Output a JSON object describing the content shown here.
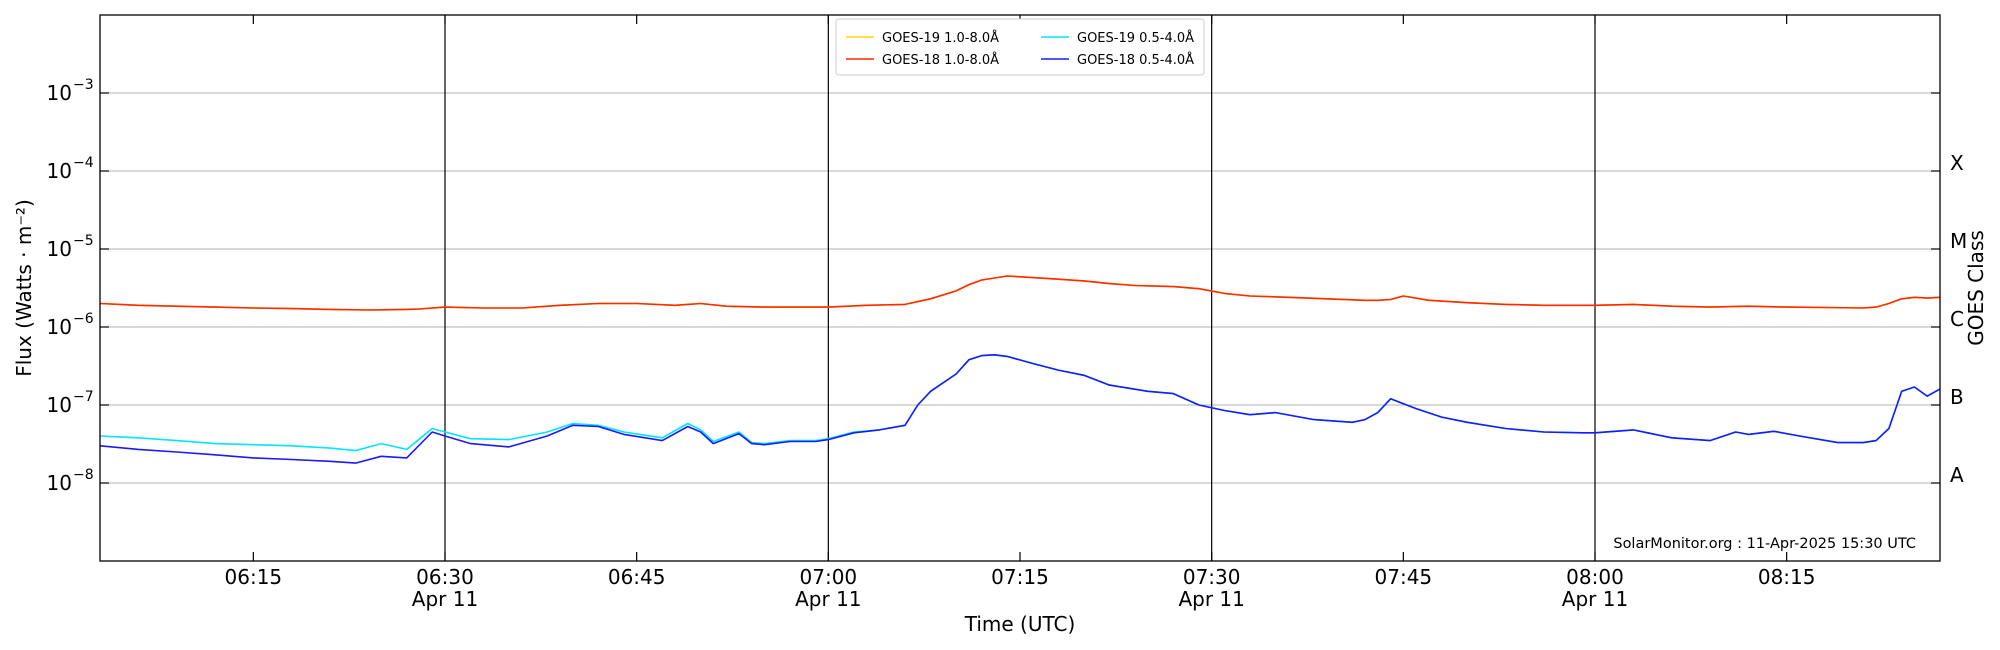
{
  "chart_data": {
    "type": "line",
    "xlabel": "Time (UTC)",
    "ylabel": "Flux (Watts · m⁻²)",
    "y2label": "GOES Class",
    "yscale": "log",
    "xlim": [
      "06:03",
      "08:27"
    ],
    "ylim": [
      1e-09,
      0.01
    ],
    "grid": "horizontal at each decade",
    "legend_location": "top-center",
    "credit": "SolarMonitor.org : 11-Apr-2025 15:30 UTC",
    "x_ticks": [
      {
        "time": "06:15",
        "label": "06:15",
        "date": ""
      },
      {
        "time": "06:30",
        "label": "06:30",
        "date": "Apr 11"
      },
      {
        "time": "06:45",
        "label": "06:45",
        "date": ""
      },
      {
        "time": "07:00",
        "label": "07:00",
        "date": "Apr 11"
      },
      {
        "time": "07:15",
        "label": "07:15",
        "date": ""
      },
      {
        "time": "07:30",
        "label": "07:30",
        "date": "Apr 11"
      },
      {
        "time": "07:45",
        "label": "07:45",
        "date": ""
      },
      {
        "time": "08:00",
        "label": "08:00",
        "date": "Apr 11"
      },
      {
        "time": "08:15",
        "label": "08:15",
        "date": ""
      }
    ],
    "vlines": [
      "06:30",
      "07:00",
      "07:30",
      "08:00"
    ],
    "y_ticks": [
      {
        "value": 1e-08,
        "base": "10",
        "exp": "−8"
      },
      {
        "value": 1e-07,
        "base": "10",
        "exp": "−7"
      },
      {
        "value": 1e-06,
        "base": "10",
        "exp": "−6"
      },
      {
        "value": 1e-05,
        "base": "10",
        "exp": "−5"
      },
      {
        "value": 0.0001,
        "base": "10",
        "exp": "−4"
      },
      {
        "value": 0.001,
        "base": "10",
        "exp": "−3"
      }
    ],
    "goes_classes": [
      {
        "label": "A",
        "value": 1e-08
      },
      {
        "label": "B",
        "value": 1e-07
      },
      {
        "label": "C",
        "value": 1e-06
      },
      {
        "label": "M",
        "value": 1e-05
      },
      {
        "label": "X",
        "value": 0.0001
      }
    ],
    "series": [
      {
        "name": "GOES-19 1.0-8.0Å",
        "color": "#ffd700",
        "x": [
          "06:03",
          "06:06",
          "06:09",
          "06:12",
          "06:15",
          "06:18",
          "06:21",
          "06:24",
          "06:27",
          "06:28",
          "06:30",
          "06:33",
          "06:36",
          "06:39",
          "06:42",
          "06:45",
          "06:48",
          "06:50",
          "06:52",
          "06:55",
          "06:58",
          "07:00",
          "07:03",
          "07:06",
          "07:08",
          "07:10",
          "07:11",
          "07:12",
          "07:14",
          "07:16",
          "07:18",
          "07:20",
          "07:22",
          "07:24",
          "07:27",
          "07:29",
          "07:31",
          "07:33",
          "07:36",
          "07:39",
          "07:42",
          "07:43",
          "07:44",
          "07:45",
          "07:47",
          "07:50",
          "07:53",
          "07:56",
          "07:59",
          "08:00",
          "08:03",
          "08:06",
          "08:09",
          "08:12",
          "08:15",
          "08:18",
          "08:21",
          "08:22",
          "08:23",
          "08:24",
          "08:25",
          "08:26",
          "08:27"
        ],
        "y": [
          2e-06,
          1.9e-06,
          1.85e-06,
          1.8e-06,
          1.75e-06,
          1.72e-06,
          1.68e-06,
          1.65e-06,
          1.68e-06,
          1.7e-06,
          1.8e-06,
          1.75e-06,
          1.75e-06,
          1.9e-06,
          2e-06,
          2e-06,
          1.9e-06,
          2e-06,
          1.85e-06,
          1.8e-06,
          1.8e-06,
          1.8e-06,
          1.9e-06,
          1.95e-06,
          2.3e-06,
          2.9e-06,
          3.5e-06,
          4e-06,
          4.5e-06,
          4.3e-06,
          4.1e-06,
          3.9e-06,
          3.6e-06,
          3.4e-06,
          3.3e-06,
          3.1e-06,
          2.7e-06,
          2.5e-06,
          2.4e-06,
          2.3e-06,
          2.2e-06,
          2.2e-06,
          2.25e-06,
          2.5e-06,
          2.2e-06,
          2.05e-06,
          1.95e-06,
          1.9e-06,
          1.9e-06,
          1.9e-06,
          1.95e-06,
          1.85e-06,
          1.8e-06,
          1.85e-06,
          1.8e-06,
          1.78e-06,
          1.75e-06,
          1.8e-06,
          2e-06,
          2.3e-06,
          2.4e-06,
          2.35e-06,
          2.4e-06
        ]
      },
      {
        "name": "GOES-18 1.0-8.0Å",
        "color": "#ff2a00",
        "x": [
          "06:03",
          "06:06",
          "06:09",
          "06:12",
          "06:15",
          "06:18",
          "06:21",
          "06:24",
          "06:27",
          "06:28",
          "06:30",
          "06:33",
          "06:36",
          "06:39",
          "06:42",
          "06:45",
          "06:48",
          "06:50",
          "06:52",
          "06:55",
          "06:58",
          "07:00",
          "07:03",
          "07:06",
          "07:08",
          "07:10",
          "07:11",
          "07:12",
          "07:14",
          "07:16",
          "07:18",
          "07:20",
          "07:22",
          "07:24",
          "07:27",
          "07:29",
          "07:31",
          "07:33",
          "07:36",
          "07:39",
          "07:42",
          "07:43",
          "07:44",
          "07:45",
          "07:47",
          "07:50",
          "07:53",
          "07:56",
          "07:59",
          "08:00",
          "08:03",
          "08:06",
          "08:09",
          "08:12",
          "08:15",
          "08:18",
          "08:21",
          "08:22",
          "08:23",
          "08:24",
          "08:25",
          "08:26",
          "08:27"
        ],
        "y": [
          2e-06,
          1.9e-06,
          1.85e-06,
          1.8e-06,
          1.75e-06,
          1.72e-06,
          1.68e-06,
          1.65e-06,
          1.68e-06,
          1.7e-06,
          1.8e-06,
          1.75e-06,
          1.75e-06,
          1.9e-06,
          2e-06,
          2e-06,
          1.9e-06,
          2e-06,
          1.85e-06,
          1.8e-06,
          1.8e-06,
          1.8e-06,
          1.9e-06,
          1.95e-06,
          2.3e-06,
          2.9e-06,
          3.5e-06,
          4e-06,
          4.5e-06,
          4.3e-06,
          4.1e-06,
          3.9e-06,
          3.6e-06,
          3.4e-06,
          3.3e-06,
          3.1e-06,
          2.7e-06,
          2.5e-06,
          2.4e-06,
          2.3e-06,
          2.2e-06,
          2.2e-06,
          2.25e-06,
          2.5e-06,
          2.2e-06,
          2.05e-06,
          1.95e-06,
          1.9e-06,
          1.9e-06,
          1.9e-06,
          1.95e-06,
          1.85e-06,
          1.8e-06,
          1.85e-06,
          1.8e-06,
          1.78e-06,
          1.75e-06,
          1.8e-06,
          2e-06,
          2.3e-06,
          2.4e-06,
          2.35e-06,
          2.4e-06
        ]
      },
      {
        "name": "GOES-19 0.5-4.0Å",
        "color": "#00e5ff",
        "x": [
          "06:03",
          "06:06",
          "06:09",
          "06:12",
          "06:15",
          "06:18",
          "06:21",
          "06:23",
          "06:25",
          "06:27",
          "06:29",
          "06:30",
          "06:32",
          "06:35",
          "06:38",
          "06:40",
          "06:42",
          "06:44",
          "06:47",
          "06:49",
          "06:50",
          "06:51",
          "06:53",
          "06:54",
          "06:55",
          "06:57",
          "06:59",
          "07:00",
          "07:02",
          "07:04",
          "07:06",
          "07:07",
          "07:08",
          "07:10",
          "07:11",
          "07:12",
          "07:13",
          "07:14",
          "07:16",
          "07:18",
          "07:20",
          "07:22",
          "07:25",
          "07:27",
          "07:29",
          "07:31",
          "07:33",
          "07:35",
          "07:38",
          "07:41",
          "07:42",
          "07:43",
          "07:44",
          "07:46",
          "07:48",
          "07:50",
          "07:53",
          "07:56",
          "07:59",
          "08:00",
          "08:03",
          "08:06",
          "08:09",
          "08:11",
          "08:12",
          "08:14",
          "08:16",
          "08:19",
          "08:21",
          "08:22",
          "08:23",
          "08:24",
          "08:25",
          "08:26",
          "08:27"
        ],
        "y": [
          4e-08,
          3.8e-08,
          3.5e-08,
          3.2e-08,
          3.1e-08,
          3e-08,
          2.8e-08,
          2.6e-08,
          3.2e-08,
          2.7e-08,
          5e-08,
          4.5e-08,
          3.7e-08,
          3.6e-08,
          4.5e-08,
          5.8e-08,
          5.5e-08,
          4.5e-08,
          3.8e-08,
          5.8e-08,
          4.8e-08,
          3.4e-08,
          4.5e-08,
          3.3e-08,
          3.2e-08,
          3.5e-08,
          3.5e-08,
          3.7e-08,
          4.5e-08,
          4.8e-08,
          5.5e-08,
          1e-07,
          1.5e-07,
          2.5e-07,
          3.8e-07,
          4.3e-07,
          4.4e-07,
          4.2e-07,
          3.4e-07,
          2.8e-07,
          2.4e-07,
          1.8e-07,
          1.5e-07,
          1.4e-07,
          1e-07,
          8.5e-08,
          7.5e-08,
          8e-08,
          6.5e-08,
          6e-08,
          6.5e-08,
          8e-08,
          1.2e-07,
          9e-08,
          7e-08,
          6e-08,
          5e-08,
          4.5e-08,
          4.4e-08,
          4.4e-08,
          4.8e-08,
          3.8e-08,
          3.5e-08,
          4.5e-08,
          4.2e-08,
          4.6e-08,
          4e-08,
          3.3e-08,
          3.3e-08,
          3.5e-08,
          5e-08,
          1.5e-07,
          1.7e-07,
          1.3e-07,
          1.6e-07
        ]
      },
      {
        "name": "GOES-18 0.5-4.0Å",
        "color": "#1a1aff",
        "x": [
          "06:03",
          "06:06",
          "06:09",
          "06:12",
          "06:15",
          "06:18",
          "06:21",
          "06:23",
          "06:25",
          "06:27",
          "06:29",
          "06:30",
          "06:32",
          "06:35",
          "06:38",
          "06:40",
          "06:42",
          "06:44",
          "06:47",
          "06:49",
          "06:50",
          "06:51",
          "06:53",
          "06:54",
          "06:55",
          "06:57",
          "06:59",
          "07:00",
          "07:02",
          "07:04",
          "07:06",
          "07:07",
          "07:08",
          "07:10",
          "07:11",
          "07:12",
          "07:13",
          "07:14",
          "07:16",
          "07:18",
          "07:20",
          "07:22",
          "07:25",
          "07:27",
          "07:29",
          "07:31",
          "07:33",
          "07:35",
          "07:38",
          "07:41",
          "07:42",
          "07:43",
          "07:44",
          "07:46",
          "07:48",
          "07:50",
          "07:53",
          "07:56",
          "07:59",
          "08:00",
          "08:03",
          "08:06",
          "08:09",
          "08:11",
          "08:12",
          "08:14",
          "08:16",
          "08:19",
          "08:21",
          "08:22",
          "08:23",
          "08:24",
          "08:25",
          "08:26",
          "08:27"
        ],
        "y": [
          3e-08,
          2.7e-08,
          2.5e-08,
          2.3e-08,
          2.1e-08,
          2e-08,
          1.9e-08,
          1.8e-08,
          2.2e-08,
          2.1e-08,
          4.5e-08,
          4e-08,
          3.2e-08,
          2.9e-08,
          4e-08,
          5.5e-08,
          5.3e-08,
          4.2e-08,
          3.5e-08,
          5.3e-08,
          4.5e-08,
          3.2e-08,
          4.3e-08,
          3.2e-08,
          3.1e-08,
          3.4e-08,
          3.4e-08,
          3.6e-08,
          4.4e-08,
          4.8e-08,
          5.5e-08,
          1e-07,
          1.5e-07,
          2.5e-07,
          3.8e-07,
          4.3e-07,
          4.4e-07,
          4.2e-07,
          3.4e-07,
          2.8e-07,
          2.4e-07,
          1.8e-07,
          1.5e-07,
          1.4e-07,
          1e-07,
          8.5e-08,
          7.5e-08,
          8e-08,
          6.5e-08,
          6e-08,
          6.5e-08,
          8e-08,
          1.2e-07,
          9e-08,
          7e-08,
          6e-08,
          5e-08,
          4.5e-08,
          4.4e-08,
          4.4e-08,
          4.8e-08,
          3.8e-08,
          3.5e-08,
          4.5e-08,
          4.2e-08,
          4.6e-08,
          4e-08,
          3.3e-08,
          3.3e-08,
          3.5e-08,
          5e-08,
          1.5e-07,
          1.7e-07,
          1.3e-07,
          1.6e-07
        ]
      }
    ]
  }
}
